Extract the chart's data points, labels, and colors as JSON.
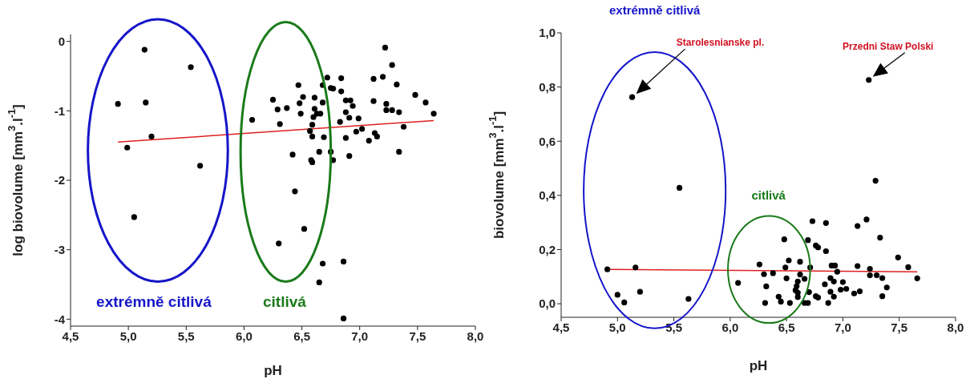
{
  "chart_data": [
    {
      "type": "scatter",
      "xlabel": "pH",
      "ylabel": "log biovolume [mm$^{3}$.l$^{-1}$]",
      "xlim": [
        4.5,
        8.0
      ],
      "ylim": [
        -4.1,
        0.1
      ],
      "xticks": [
        {
          "value": 4.5,
          "label": "4,5"
        },
        {
          "value": 5.0,
          "label": "5,0"
        },
        {
          "value": 5.5,
          "label": "5,5"
        },
        {
          "value": 6.0,
          "label": "6,0"
        },
        {
          "value": 6.5,
          "label": "6,5"
        },
        {
          "value": 7.0,
          "label": "7,0"
        },
        {
          "value": 7.5,
          "label": "7,5"
        },
        {
          "value": 8.0,
          "label": "8,0"
        }
      ],
      "yticks": [
        -4,
        -3,
        -2,
        -1,
        0
      ],
      "series": [
        {
          "marker": "circle",
          "color": "#000000",
          "x": [
            4.91,
            5.14,
            5.54,
            5.15,
            5.2,
            4.99,
            5.62,
            5.05,
            6.07,
            6.25,
            6.29,
            6.31,
            6.37,
            6.47,
            6.51,
            6.48,
            6.49,
            6.61,
            6.61,
            6.6,
            6.63,
            6.66,
            6.59,
            6.57,
            6.59,
            6.69,
            6.68,
            6.68,
            6.72,
            6.75,
            6.77,
            6.84,
            6.84,
            6.88,
            6.92,
            6.94,
            6.88,
            6.91,
            6.99,
            6.83,
            6.97,
            7.02,
            6.88,
            7.08,
            7.13,
            7.15,
            7.12,
            7.12,
            7.2,
            7.22,
            7.28,
            7.32,
            7.23,
            7.23,
            7.28,
            7.34,
            7.38,
            7.34,
            7.48,
            7.57,
            7.64,
            6.42,
            6.65,
            6.58,
            6.59,
            6.75,
            6.77,
            6.91,
            6.44,
            6.52,
            6.3,
            6.68,
            6.86,
            6.65,
            6.86
          ],
          "values": [
            -0.9,
            -0.12,
            -0.37,
            -0.88,
            -1.37,
            -1.53,
            -1.79,
            -2.53,
            -1.13,
            -0.84,
            -0.98,
            -1.19,
            -0.96,
            -0.63,
            -0.8,
            -0.89,
            -1.04,
            -0.81,
            -0.97,
            -1.09,
            -1.04,
            -1.04,
            -1.2,
            -1.29,
            -1.37,
            -1.38,
            -0.88,
            -0.63,
            -0.52,
            -0.67,
            -0.68,
            -0.53,
            -0.72,
            -0.85,
            -0.85,
            -0.93,
            -1.02,
            -1.1,
            -1.11,
            -1.16,
            -1.3,
            -1.26,
            -1.39,
            -1.43,
            -1.32,
            -1.37,
            -0.86,
            -0.54,
            -0.51,
            -0.09,
            -0.34,
            -0.62,
            -0.9,
            -0.99,
            -0.99,
            -1.02,
            -1.23,
            -1.59,
            -0.77,
            -0.88,
            -1.04,
            -1.63,
            -1.59,
            -1.71,
            -1.74,
            -1.59,
            -1.71,
            -1.65,
            -2.16,
            -2.7,
            -2.91,
            -3.2,
            -3.17,
            -3.47,
            -3.99
          ]
        },
        {
          "type": "line",
          "marker": "none",
          "color": "#e02020",
          "x": [
            4.91,
            7.64
          ],
          "values": [
            -1.45,
            -1.14
          ]
        }
      ],
      "annotations": [
        "extrémně citlivá",
        "citlivá"
      ]
    },
    {
      "type": "scatter",
      "xlabel": "pH",
      "ylabel": "biovolume [mm$^{3}$.l$^{-1}$]",
      "xlim": [
        4.5,
        8.0
      ],
      "ylim": [
        -0.05,
        1.0
      ],
      "xticks": [
        {
          "value": 4.5,
          "label": "4,5"
        },
        {
          "value": 5.0,
          "label": "5,0"
        },
        {
          "value": 5.5,
          "label": "5,5"
        },
        {
          "value": 6.0,
          "label": "6,0"
        },
        {
          "value": 6.5,
          "label": "6,5"
        },
        {
          "value": 7.0,
          "label": "7,0"
        },
        {
          "value": 7.5,
          "label": "7,5"
        },
        {
          "value": 8.0,
          "label": "8,0"
        }
      ],
      "yticks": [
        {
          "value": 0,
          "label": "0,0"
        },
        {
          "value": 0.2,
          "label": "0,2"
        },
        {
          "value": 0.4,
          "label": "0,4"
        },
        {
          "value": 0.6,
          "label": "0,6"
        },
        {
          "value": 0.8,
          "label": "0,8"
        },
        {
          "value": 1.0,
          "label": "1,0"
        }
      ],
      "series": [
        {
          "marker": "circle",
          "color": "#000000",
          "x": [
            5.13,
            5.55,
            4.91,
            5.16,
            5.0,
            5.06,
            5.2,
            5.63,
            7.23,
            7.29,
            6.73,
            6.85,
            7.13,
            7.21,
            7.33,
            6.48,
            6.69,
            6.76,
            6.78,
            6.85,
            7.49,
            7.58,
            7.66,
            6.26,
            6.3,
            6.38,
            6.32,
            6.31,
            6.52,
            6.49,
            6.5,
            6.62,
            6.62,
            6.66,
            6.6,
            6.59,
            6.58,
            6.6,
            6.6,
            6.43,
            6.45,
            6.53,
            6.66,
            6.69,
            6.7,
            6.71,
            6.76,
            6.78,
            6.84,
            6.87,
            6.89,
            6.92,
            6.89,
            6.92,
            6.9,
            6.93,
            6.95,
            7.0,
            6.98,
            7.03,
            7.1,
            7.15,
            7.13,
            7.24,
            7.24,
            7.3,
            7.35,
            7.39,
            7.35,
            6.07
          ],
          "values": [
            0.763,
            0.428,
            0.127,
            0.134,
            0.033,
            0.005,
            0.044,
            0.018,
            0.826,
            0.454,
            0.305,
            0.298,
            0.287,
            0.311,
            0.244,
            0.238,
            0.235,
            0.215,
            0.208,
            0.194,
            0.171,
            0.135,
            0.094,
            0.145,
            0.109,
            0.113,
            0.064,
            0.003,
            0.16,
            0.134,
            0.094,
            0.155,
            0.108,
            0.092,
            0.082,
            0.065,
            0.05,
            0.041,
            0.025,
            0.026,
            0.008,
            0.003,
            0.003,
            0.003,
            0.043,
            0.134,
            0.028,
            0.023,
            0.072,
            0.003,
            0.044,
            0.026,
            0.095,
            0.082,
            0.141,
            0.141,
            0.118,
            0.08,
            0.052,
            0.055,
            0.038,
            0.046,
            0.139,
            0.129,
            0.105,
            0.105,
            0.095,
            0.06,
            0.028,
            0.077
          ]
        },
        {
          "type": "line",
          "marker": "none",
          "color": "#e02020",
          "x": [
            4.91,
            7.66
          ],
          "values": [
            0.127,
            0.118
          ]
        }
      ],
      "annotations": [
        "extrémně citlivá",
        "citlivá",
        "Starolesnianske pl.",
        {
          "text": "Przedni Staw Polski",
          "x": 7.23,
          "y": 0.826
        }
      ]
    }
  ]
}
